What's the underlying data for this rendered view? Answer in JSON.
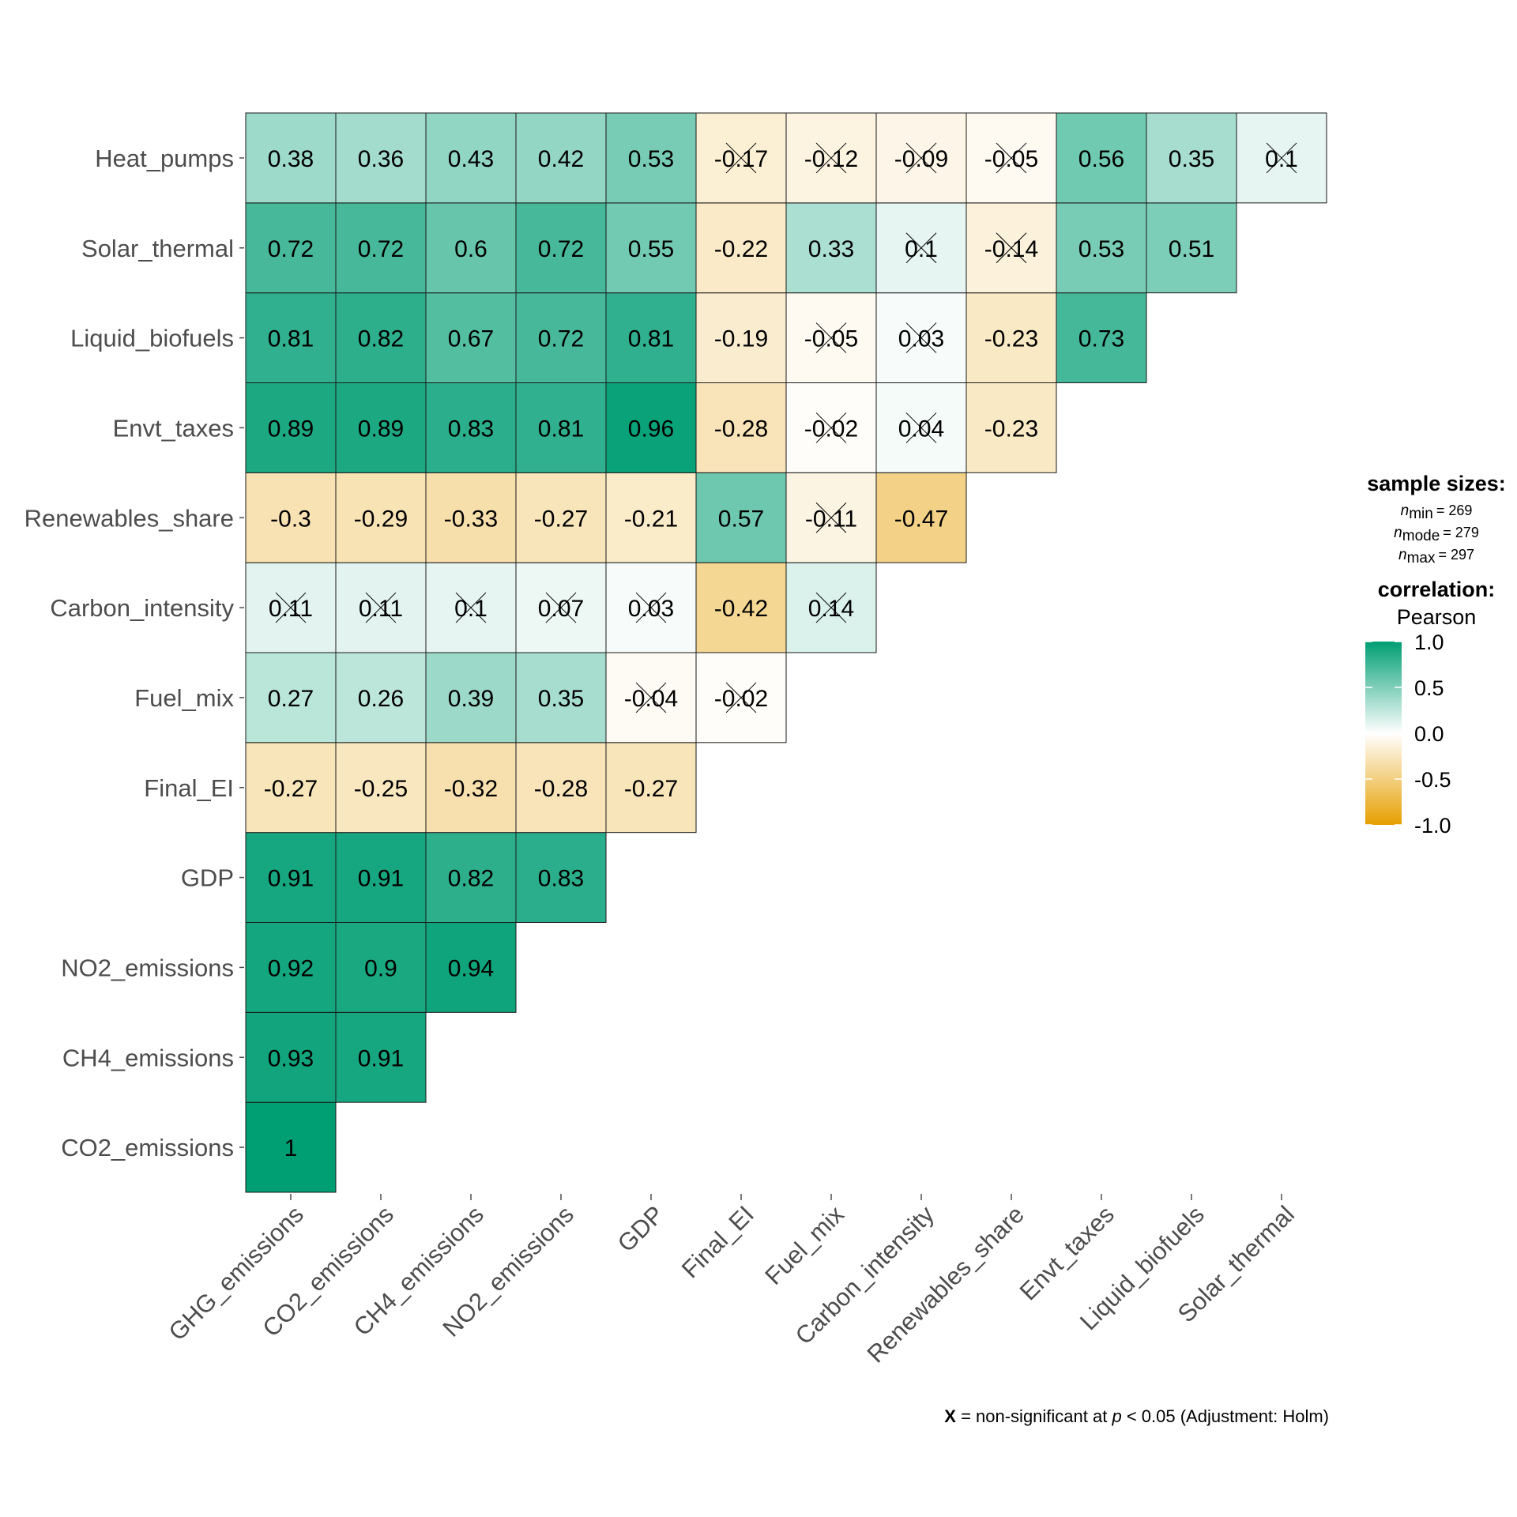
{
  "chart_data": {
    "type": "heatmap",
    "x_labels": [
      "GHG_emissions",
      "CO2_emissions",
      "CH4_emissions",
      "NO2_emissions",
      "GDP",
      "Final_EI",
      "Fuel_mix",
      "Carbon_intensity",
      "Renewables_share",
      "Envt_taxes",
      "Liquid_biofuels",
      "Solar_thermal"
    ],
    "y_labels": [
      "CO2_emissions",
      "CH4_emissions",
      "NO2_emissions",
      "GDP",
      "Final_EI",
      "Fuel_mix",
      "Carbon_intensity",
      "Renewables_share",
      "Envt_taxes",
      "Liquid_biofuels",
      "Solar_thermal",
      "Heat_pumps"
    ],
    "rows": [
      {
        "values": [
          1
        ]
      },
      {
        "values": [
          0.93,
          0.91
        ]
      },
      {
        "values": [
          0.92,
          0.9,
          0.94
        ]
      },
      {
        "values": [
          0.91,
          0.91,
          0.82,
          0.83
        ]
      },
      {
        "values": [
          -0.27,
          -0.25,
          -0.32,
          -0.28,
          -0.27
        ]
      },
      {
        "values": [
          0.27,
          0.26,
          0.39,
          0.35,
          -0.04,
          -0.02
        ],
        "nonsig": [
          4,
          5
        ]
      },
      {
        "values": [
          0.11,
          0.11,
          0.1,
          0.07,
          0.03,
          -0.42,
          0.14
        ],
        "nonsig": [
          0,
          1,
          2,
          3,
          4,
          6
        ]
      },
      {
        "values": [
          -0.3,
          -0.29,
          -0.33,
          -0.27,
          -0.21,
          0.57,
          -0.11,
          -0.47
        ],
        "nonsig": [
          6
        ]
      },
      {
        "values": [
          0.89,
          0.89,
          0.83,
          0.81,
          0.96,
          -0.28,
          -0.02,
          0.04,
          -0.23
        ],
        "nonsig": [
          6,
          7
        ]
      },
      {
        "values": [
          0.81,
          0.82,
          0.67,
          0.72,
          0.81,
          -0.19,
          -0.05,
          0.03,
          -0.23,
          0.73
        ],
        "nonsig": [
          6,
          7
        ]
      },
      {
        "values": [
          0.72,
          0.72,
          0.6,
          0.72,
          0.55,
          -0.22,
          0.33,
          0.1,
          -0.14,
          0.53,
          0.51
        ],
        "nonsig": [
          7,
          8
        ]
      },
      {
        "values": [
          0.38,
          0.36,
          0.43,
          0.42,
          0.53,
          -0.17,
          -0.12,
          -0.09,
          -0.05,
          0.56,
          0.35,
          0.1
        ],
        "nonsig": [
          5,
          6,
          7,
          8,
          11
        ]
      }
    ],
    "color_scale": {
      "low": "#E69F00",
      "mid": "#FFFFFF",
      "high": "#009E73",
      "limits": [
        -1,
        1
      ]
    },
    "legend_position": "right"
  },
  "legend": {
    "sample_sizes_title": "sample sizes:",
    "n_min": {
      "sub": "min",
      "value": "= 269"
    },
    "n_mode": {
      "sub": "mode",
      "value": "= 279"
    },
    "n_max": {
      "sub": "max",
      "value": "= 297"
    },
    "correlation_title": "correlation:",
    "method": "Pearson",
    "ticks": [
      "1.0",
      "0.5",
      "0.0",
      "-0.5",
      "-1.0"
    ]
  },
  "caption": {
    "symbol": "X",
    "text_before_p": " = non-significant at ",
    "p_symbol": "p",
    "text_after_p": " < 0.05 (Adjustment: Holm)"
  }
}
